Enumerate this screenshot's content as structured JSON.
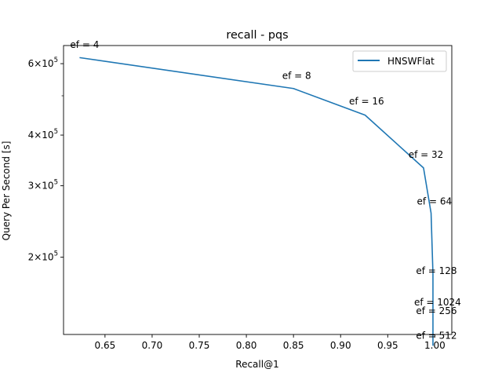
{
  "chart_data": {
    "type": "line",
    "title": "recall - pqs",
    "xlabel": "Recall@1",
    "ylabel": "Query Per Second [s]",
    "xlim": [
      0.606,
      1.018
    ],
    "ylim": [
      129000,
      665000
    ],
    "y_scale": "log",
    "x_ticks": [
      0.65,
      0.7,
      0.75,
      0.8,
      0.85,
      0.9,
      0.95,
      1.0
    ],
    "x_tick_labels": [
      "0.65",
      "0.70",
      "0.75",
      "0.80",
      "0.85",
      "0.90",
      "0.95",
      "1.00"
    ],
    "y_major_ticks": [
      {
        "value": 200000,
        "mantissa": "2",
        "base": "10",
        "exp": "5"
      },
      {
        "value": 300000,
        "mantissa": "3",
        "base": "10",
        "exp": "5"
      },
      {
        "value": 400000,
        "mantissa": "4",
        "base": "10",
        "exp": "5"
      },
      {
        "value": 600000,
        "mantissa": "6",
        "base": "10",
        "exp": "5"
      }
    ],
    "y_minor_ticks": [
      500000
    ],
    "legend_position": "upper-right",
    "grid": false,
    "series": [
      {
        "name": "HNSWFlat",
        "color": "#1f77b4",
        "x": [
          0.623,
          0.85,
          0.926,
          0.988,
          0.996,
          0.998,
          0.998,
          0.998,
          0.998
        ],
        "y": [
          621000,
          521000,
          448000,
          332000,
          257000,
          182000,
          144000,
          128000,
          121000
        ]
      }
    ],
    "annotations": [
      {
        "text": "ef = 4",
        "x": 0.613,
        "y": 656000
      },
      {
        "text": "ef = 8",
        "x": 0.838,
        "y": 550000
      },
      {
        "text": "ef = 16",
        "x": 0.909,
        "y": 476000
      },
      {
        "text": "ef = 32",
        "x": 0.972,
        "y": 352000
      },
      {
        "text": "ef = 64",
        "x": 0.981,
        "y": 270000
      },
      {
        "text": "ef = 128",
        "x": 0.98,
        "y": 182000
      },
      {
        "text": "ef = 1024",
        "x": 0.978,
        "y": 152000
      },
      {
        "text": "ef = 256",
        "x": 0.98,
        "y": 145000
      },
      {
        "text": "ef = 512",
        "x": 0.98,
        "y": 126000
      }
    ]
  }
}
